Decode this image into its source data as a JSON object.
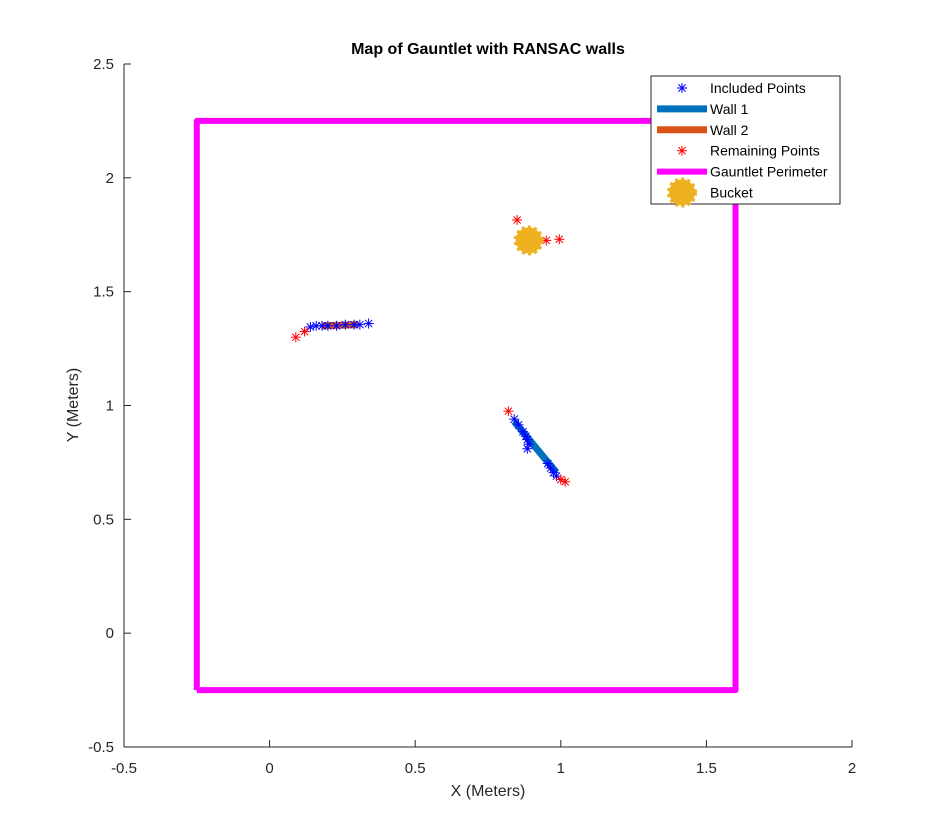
{
  "chart_data": {
    "type": "scatter",
    "title": "Map of Gauntlet with RANSAC walls",
    "xlabel": "X (Meters)",
    "ylabel": "Y (Meters)",
    "xlim": [
      -0.5,
      2
    ],
    "ylim": [
      -0.5,
      2.5
    ],
    "xticks": [
      -0.5,
      0,
      0.5,
      1,
      1.5,
      2
    ],
    "yticks": [
      -0.5,
      0,
      0.5,
      1,
      1.5,
      2,
      2.5
    ],
    "xtick_labels": [
      "-0.5",
      "0",
      "0.5",
      "1",
      "1.5",
      "2"
    ],
    "ytick_labels": [
      "-0.5",
      "0",
      "0.5",
      "1",
      "1.5",
      "2",
      "2.5"
    ],
    "grid": false,
    "legend_position": "top-right",
    "series": [
      {
        "name": "Included Points",
        "kind": "markers",
        "marker": "asterisk",
        "color": "#0000ff",
        "points": [
          [
            0.84,
            0.94
          ],
          [
            0.855,
            0.915
          ],
          [
            0.87,
            0.885
          ],
          [
            0.88,
            0.865
          ],
          [
            0.885,
            0.85
          ],
          [
            0.89,
            0.83
          ],
          [
            0.885,
            0.81
          ],
          [
            0.955,
            0.745
          ],
          [
            0.965,
            0.725
          ],
          [
            0.975,
            0.705
          ],
          [
            0.985,
            0.69
          ],
          [
            0.14,
            1.345
          ],
          [
            0.16,
            1.35
          ],
          [
            0.18,
            1.35
          ],
          [
            0.2,
            1.35
          ],
          [
            0.23,
            1.35
          ],
          [
            0.26,
            1.355
          ],
          [
            0.29,
            1.355
          ],
          [
            0.31,
            1.355
          ],
          [
            0.34,
            1.36
          ]
        ]
      },
      {
        "name": "Wall 1",
        "kind": "line",
        "color": "#0072bd",
        "points": [
          [
            0.84,
            0.93
          ],
          [
            0.985,
            0.705
          ]
        ]
      },
      {
        "name": "Wall 2",
        "kind": "line",
        "color": "#d95319",
        "points": [
          [
            0.18,
            1.35
          ],
          [
            0.305,
            1.355
          ]
        ]
      },
      {
        "name": "Remaining Points",
        "kind": "markers",
        "marker": "asterisk",
        "color": "#ff0000",
        "points": [
          [
            0.09,
            1.3
          ],
          [
            0.12,
            1.325
          ],
          [
            0.82,
            0.975
          ],
          [
            1.0,
            0.675
          ],
          [
            1.015,
            0.665
          ],
          [
            0.85,
            1.815
          ],
          [
            0.95,
            1.725
          ],
          [
            0.995,
            1.73
          ]
        ]
      },
      {
        "name": "Gauntlet Perimeter",
        "kind": "line",
        "color": "#ff00ff",
        "points": [
          [
            -0.25,
            -0.25
          ],
          [
            -0.25,
            2.25
          ],
          [
            1.6,
            2.25
          ],
          [
            1.6,
            -0.25
          ],
          [
            -0.25,
            -0.25
          ]
        ]
      },
      {
        "name": "Bucket",
        "kind": "bubble",
        "color": "#edb120",
        "points": [
          [
            0.89,
            1.725
          ]
        ]
      }
    ]
  }
}
